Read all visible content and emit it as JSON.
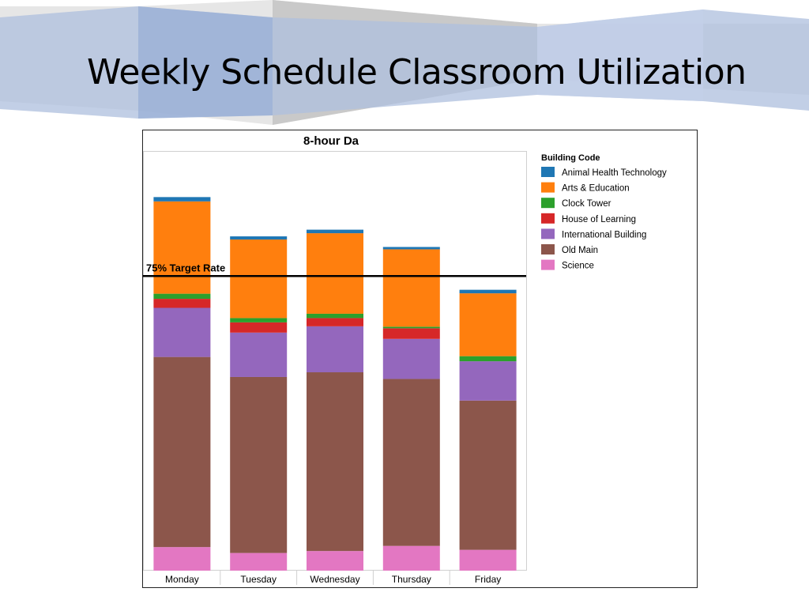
{
  "slide": {
    "title": "Weekly Schedule Classroom Utilization"
  },
  "chart_data": {
    "type": "bar",
    "stacked": true,
    "title": "8-hour Da",
    "xlabel": "",
    "ylabel": "",
    "ylim": [
      0,
      1
    ],
    "grid": false,
    "legend_position": "right",
    "legend_title": "Building Code",
    "categories": [
      "Monday",
      "Tuesday",
      "Wednesday",
      "Thursday",
      "Friday"
    ],
    "reference_line": {
      "label": "75% Target Rate",
      "value": 0.75
    },
    "series": [
      {
        "name": "Science",
        "color": "#e377c2",
        "values": [
          0.06,
          0.045,
          0.05,
          0.063,
          0.053
        ]
      },
      {
        "name": "Old Main",
        "color": "#8c564b",
        "values": [
          0.484,
          0.448,
          0.455,
          0.425,
          0.38
        ]
      },
      {
        "name": "International Building",
        "color": "#9467bd",
        "values": [
          0.125,
          0.113,
          0.117,
          0.102,
          0.1
        ]
      },
      {
        "name": "House of Learning",
        "color": "#d62728",
        "values": [
          0.023,
          0.026,
          0.021,
          0.027,
          0.0
        ]
      },
      {
        "name": "Clock Tower",
        "color": "#2ca02c",
        "values": [
          0.013,
          0.011,
          0.011,
          0.004,
          0.013
        ]
      },
      {
        "name": "Arts & Education",
        "color": "#ff7f0e",
        "values": [
          0.235,
          0.2,
          0.205,
          0.197,
          0.16
        ]
      },
      {
        "name": "Animal Health Technology",
        "color": "#1f77b4",
        "values": [
          0.011,
          0.008,
          0.009,
          0.006,
          0.009
        ]
      }
    ],
    "legend_order": [
      "Animal Health Technology",
      "Arts & Education",
      "Clock Tower",
      "House of Learning",
      "International Building",
      "Old Main",
      "Science"
    ]
  }
}
